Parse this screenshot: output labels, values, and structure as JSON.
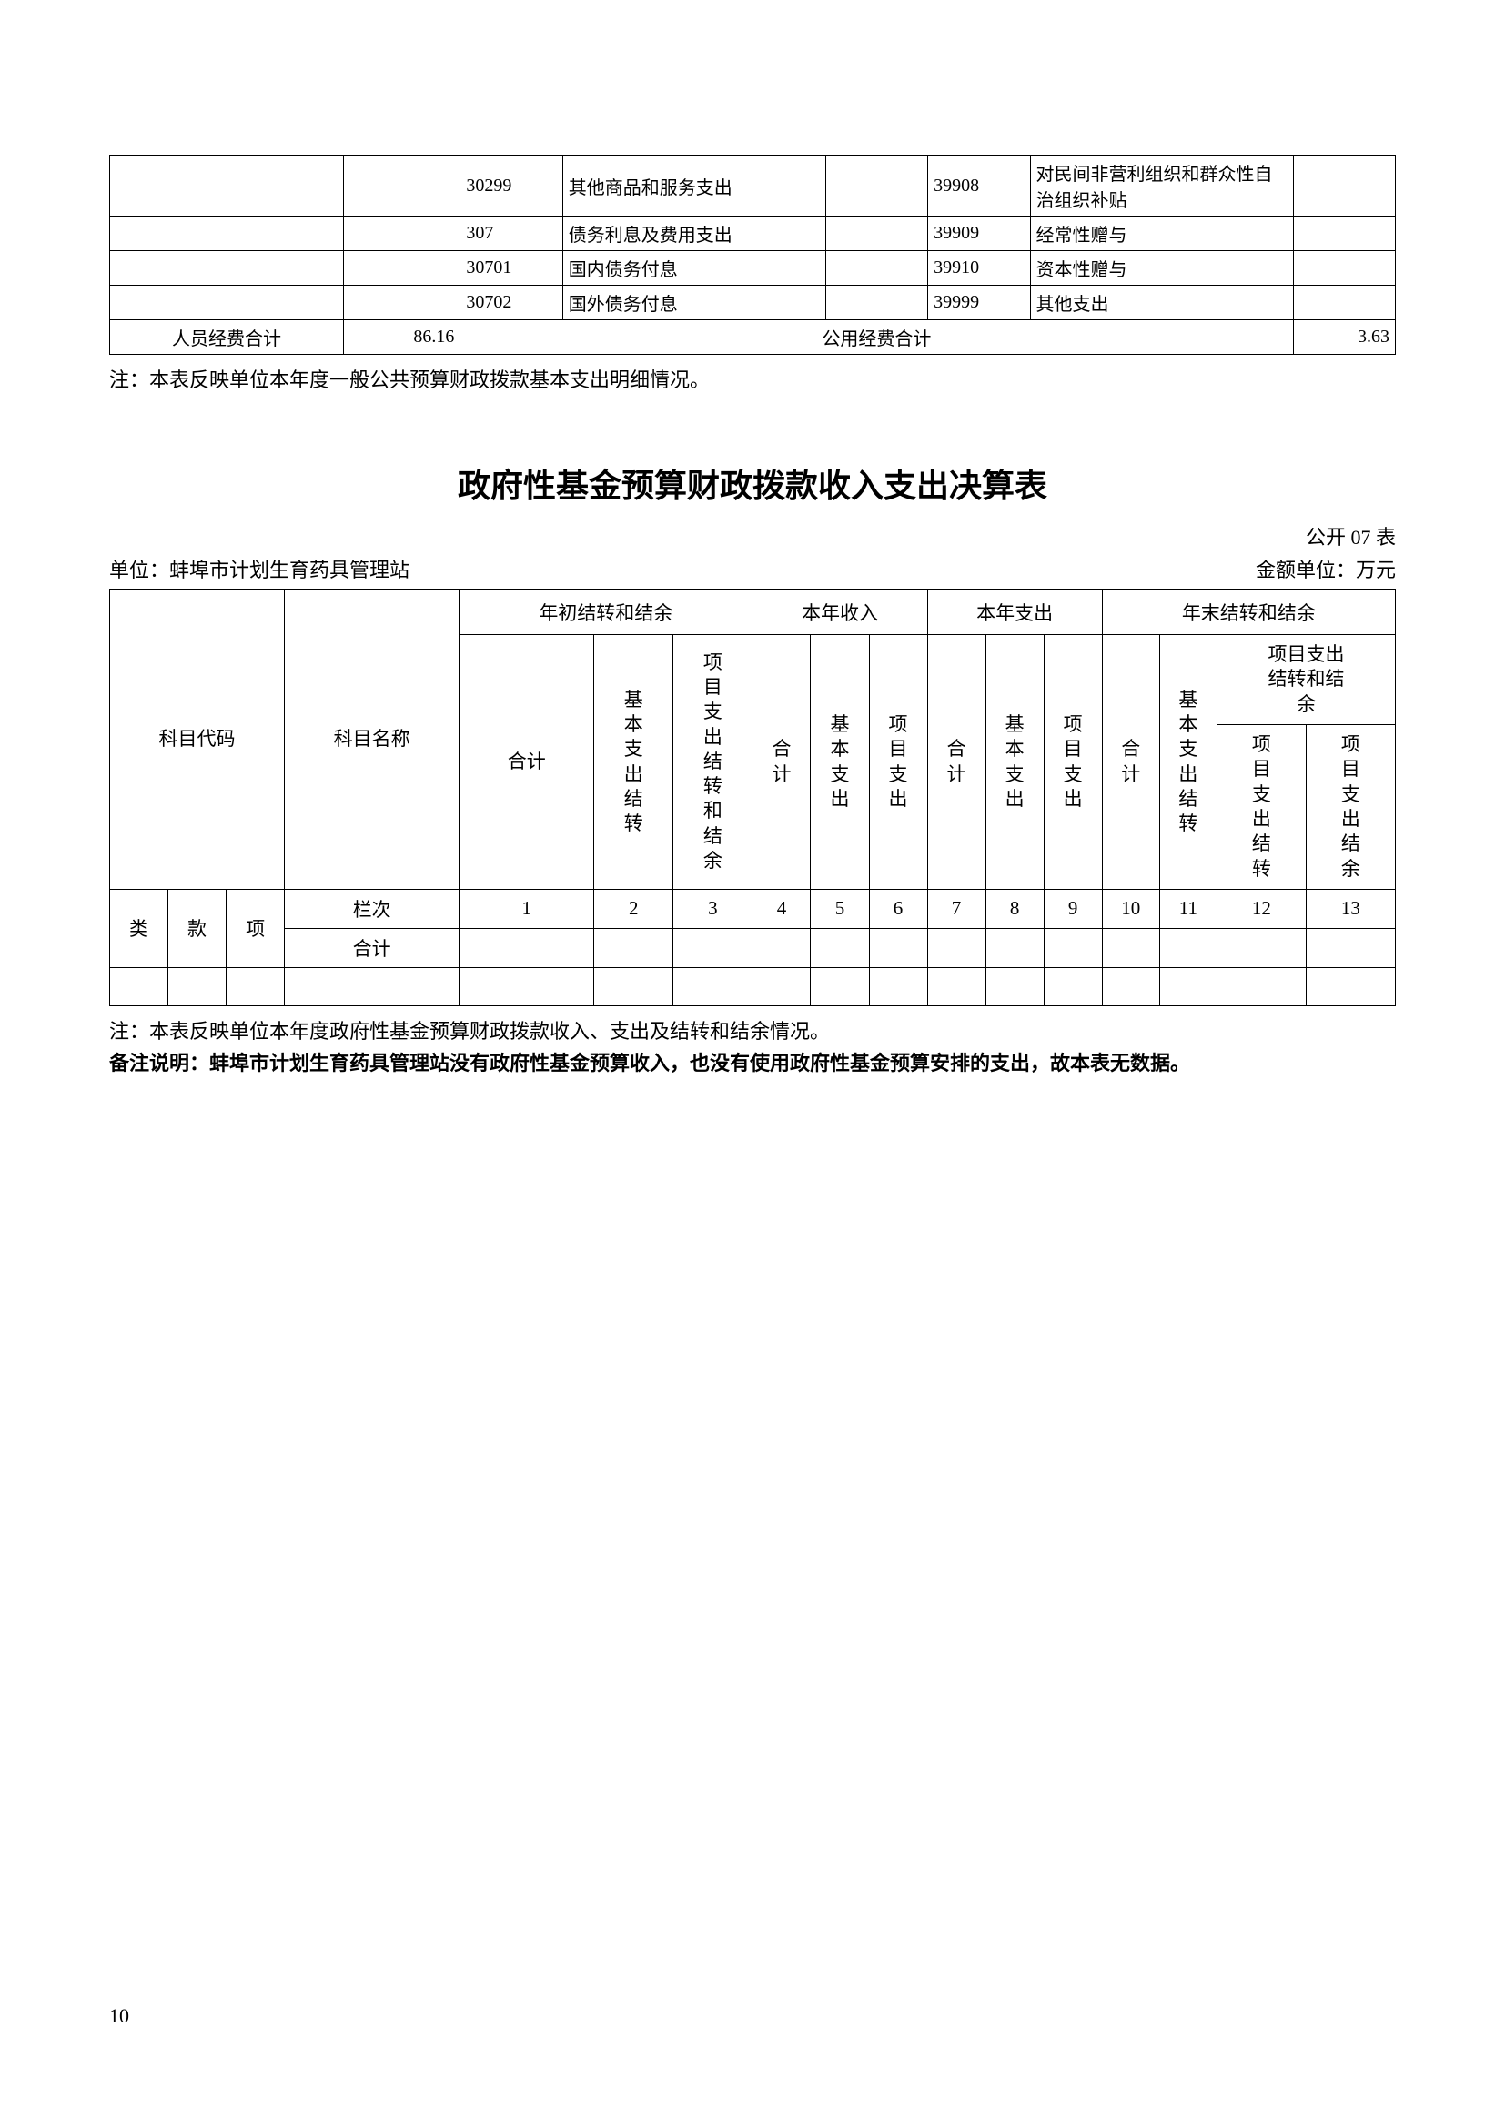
{
  "table1": {
    "rows": [
      {
        "c1": "",
        "c2": "",
        "c3": "30299",
        "c4": "其他商品和服务支出",
        "c5": "",
        "c6": "39908",
        "c7": "对民间非营利组织和群众性自治组织补贴",
        "c8": ""
      },
      {
        "c1": "",
        "c2": "",
        "c3": "307",
        "c4": "债务利息及费用支出",
        "c5": "",
        "c6": "39909",
        "c7": "经常性赠与",
        "c8": ""
      },
      {
        "c1": "",
        "c2": "",
        "c3": "30701",
        "c4": "国内债务付息",
        "c5": "",
        "c6": "39910",
        "c7": "资本性赠与",
        "c8": ""
      },
      {
        "c1": "",
        "c2": "",
        "c3": "30702",
        "c4": "国外债务付息",
        "c5": "",
        "c6": "39999",
        "c7": "其他支出",
        "c8": ""
      }
    ],
    "total": {
      "left_label": "人员经费合计",
      "left_value": "86.16",
      "right_label": "公用经费合计",
      "right_value": "3.63"
    },
    "note": "注：本表反映单位本年度一般公共预算财政拨款基本支出明细情况。"
  },
  "section2": {
    "title": "政府性基金预算财政拨款收入支出决算表",
    "table_no": "公开 07 表",
    "unit_label": "单位：蚌埠市计划生育药具管理站",
    "amount_unit": "金额单位：万元"
  },
  "table2": {
    "headers": {
      "subject_code": "科目代码",
      "subject_name": "科目名称",
      "year_begin": "年初结转和结余",
      "year_income": "本年收入",
      "year_expense": "本年支出",
      "year_end": "年末结转和结余",
      "total": "合计",
      "basic_carry": "基本支出结转",
      "project_carry_balance": "项目支出结转和结余",
      "basic_expense": "基本支出",
      "project_expense": "项目支出",
      "project_balance_group": "项目支出结转和结余",
      "project_carry": "项目支出结转",
      "project_balance": "项目支出结余",
      "row_label": "栏次",
      "class": "类",
      "item": "款",
      "sub": "项",
      "sum": "合计"
    },
    "col_nums": [
      "1",
      "2",
      "3",
      "4",
      "5",
      "6",
      "7",
      "8",
      "9",
      "10",
      "11",
      "12",
      "13"
    ],
    "note": "注：本表反映单位本年度政府性基金预算财政拨款收入、支出及结转和结余情况。",
    "remark": "备注说明：蚌埠市计划生育药具管理站没有政府性基金预算收入，也没有使用政府性基金预算安排的支出，故本表无数据。"
  },
  "page_number": "10",
  "styles": {
    "background": "#ffffff",
    "text_color": "#000000",
    "border_color": "#000000",
    "title_fontsize": 36,
    "body_fontsize": 22,
    "table_fontsize": 20
  }
}
